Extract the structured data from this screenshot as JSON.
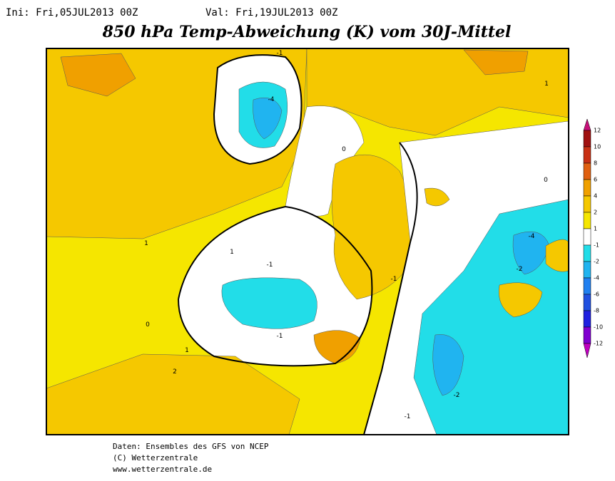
{
  "header": {
    "init": "Ini: Fri,05JUL2013 00Z",
    "valid": "Val: Fri,19JUL2013 00Z",
    "title": "850 hPa Temp-Abweichung (K) vom 30J-Mittel"
  },
  "legend": {
    "ticks": [
      12,
      10,
      8,
      6,
      4,
      2,
      1,
      -1,
      -2,
      -4,
      -6,
      -8,
      -10,
      -12
    ],
    "colors": [
      "#c8107a",
      "#a01010",
      "#c83014",
      "#e06010",
      "#f0a000",
      "#f5c800",
      "#f5e600",
      "#ffffff",
      "#22dde8",
      "#20b4f0",
      "#2080f0",
      "#2050e0",
      "#2020e0",
      "#8000d0",
      "#c000c0"
    ]
  },
  "contour_labels": [
    -1,
    -4,
    0,
    1,
    1,
    -1,
    0,
    -1,
    1,
    2,
    -1,
    -4,
    -2,
    -2,
    1,
    0,
    -1
  ],
  "footer": [
    "Daten: Ensembles des GFS von NCEP",
    "(C) Wetterzentrale",
    "www.wetterzentrale.de"
  ]
}
